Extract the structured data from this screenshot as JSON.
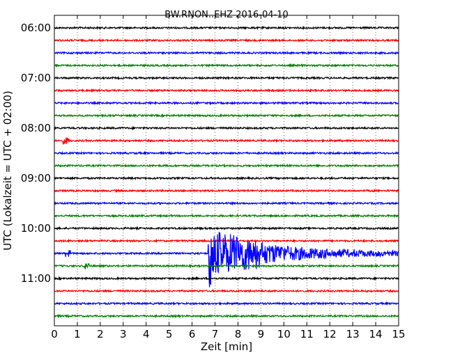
{
  "chart_data": {
    "type": "line",
    "title": "BW.RNON..EHZ 2016-04-10",
    "xlabel": "Zeit  [min]",
    "ylabel": "UTC (Lokalzeit = UTC + 02:00)",
    "xlim": [
      0,
      15
    ],
    "x_ticks": [
      "0",
      "1",
      "2",
      "3",
      "4",
      "5",
      "6",
      "7",
      "8",
      "9",
      "10",
      "11",
      "12",
      "13",
      "14",
      "15"
    ],
    "y_ticks": [
      "06:00",
      "07:00",
      "08:00",
      "09:00",
      "10:00",
      "11:00"
    ],
    "grid": true,
    "trace_interval_minutes": 15,
    "traces_start": "06:00",
    "traces_end": "11:45",
    "trace_colors": [
      "#000000",
      "#ff0000",
      "#0000ff",
      "#008000"
    ],
    "event": {
      "trace": "10:30",
      "onset_min": 6.7,
      "strong_end_min": 9.0,
      "coda_end_min": 15
    },
    "spikes": [
      {
        "trace": "08:15",
        "x_min": 0.5
      },
      {
        "trace": "10:30",
        "x_min": 0.6
      },
      {
        "trace": "10:45",
        "x_min": 1.4
      }
    ]
  }
}
